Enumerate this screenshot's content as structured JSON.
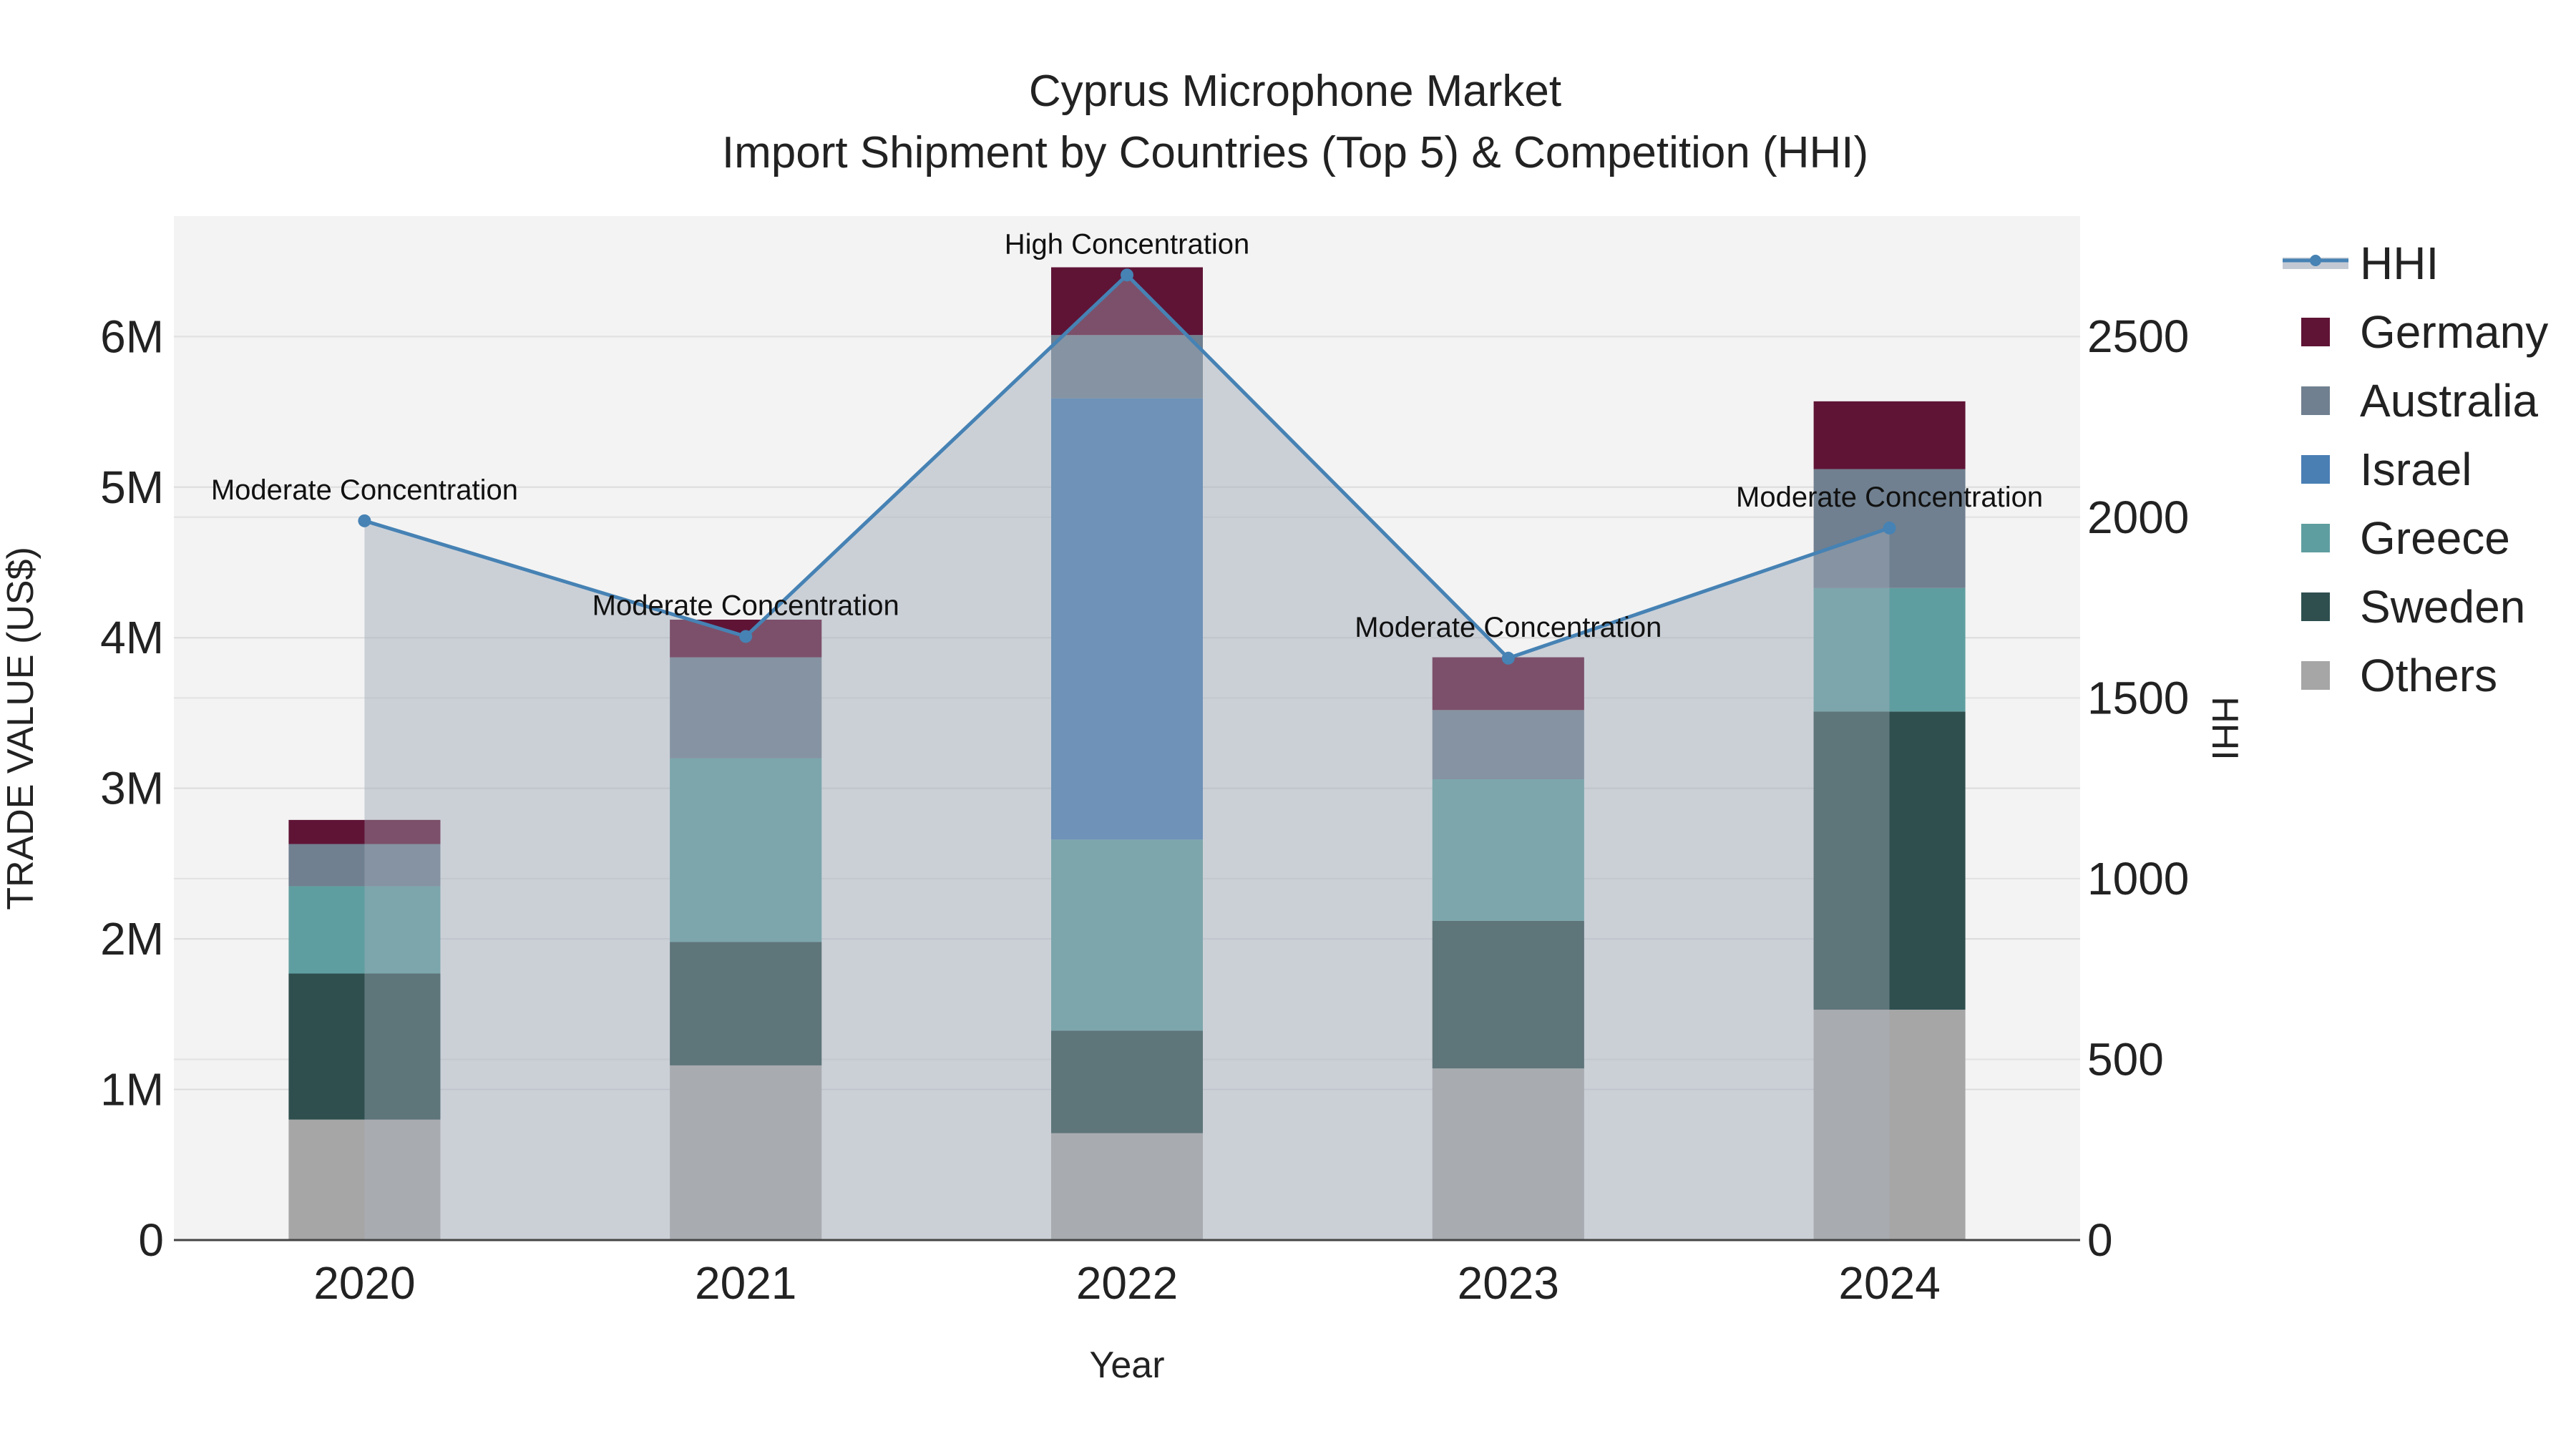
{
  "chart_data": {
    "type": "bar",
    "title_line1": "Cyprus Microphone Market",
    "title_line2": "Import Shipment by Countries (Top 5) & Competition (HHI)",
    "xlabel": "Year",
    "ylabel": "TRADE VALUE (US$)",
    "y2label": "HHI",
    "categories": [
      "2020",
      "2021",
      "2022",
      "2023",
      "2024"
    ],
    "ylim": [
      0,
      6800000
    ],
    "y2lim": [
      0,
      2833
    ],
    "yticks": [
      {
        "value": 0,
        "label": "0"
      },
      {
        "value": 1000000,
        "label": "1M"
      },
      {
        "value": 2000000,
        "label": "2M"
      },
      {
        "value": 3000000,
        "label": "3M"
      },
      {
        "value": 4000000,
        "label": "4M"
      },
      {
        "value": 5000000,
        "label": "5M"
      },
      {
        "value": 6000000,
        "label": "6M"
      }
    ],
    "y2ticks": [
      {
        "value": 0,
        "label": "0"
      },
      {
        "value": 500,
        "label": "500"
      },
      {
        "value": 1000,
        "label": "1000"
      },
      {
        "value": 1500,
        "label": "1500"
      },
      {
        "value": 2000,
        "label": "2000"
      },
      {
        "value": 2500,
        "label": "2500"
      }
    ],
    "series": [
      {
        "name": "Others",
        "color": "#a6a6a6",
        "values": [
          800000,
          1160000,
          710000,
          1140000,
          1530000
        ]
      },
      {
        "name": "Sweden",
        "color": "#2f4f4f",
        "values": [
          970000,
          820000,
          680000,
          980000,
          1980000
        ]
      },
      {
        "name": "Greece",
        "color": "#5f9ea0",
        "values": [
          580000,
          1220000,
          1270000,
          940000,
          820000
        ]
      },
      {
        "name": "Israel",
        "color": "#4a7fb4",
        "values": [
          0,
          0,
          2930000,
          0,
          0
        ]
      },
      {
        "name": "Australia",
        "color": "#708090",
        "values": [
          280000,
          670000,
          420000,
          460000,
          790000
        ]
      },
      {
        "name": "Germany",
        "color": "#5f1436",
        "values": [
          160000,
          250000,
          450000,
          350000,
          450000
        ]
      }
    ],
    "hhi": {
      "name": "HHI",
      "color": "#4682b4",
      "values": [
        1990,
        1670,
        2670,
        1610,
        1970
      ],
      "annotations": [
        "Moderate Concentration",
        "Moderate Concentration",
        "High Concentration",
        "Moderate Concentration",
        "Moderate Concentration"
      ]
    },
    "legend": [
      "HHI",
      "Germany",
      "Australia",
      "Israel",
      "Greece",
      "Sweden",
      "Others"
    ],
    "legend_position": "right"
  }
}
